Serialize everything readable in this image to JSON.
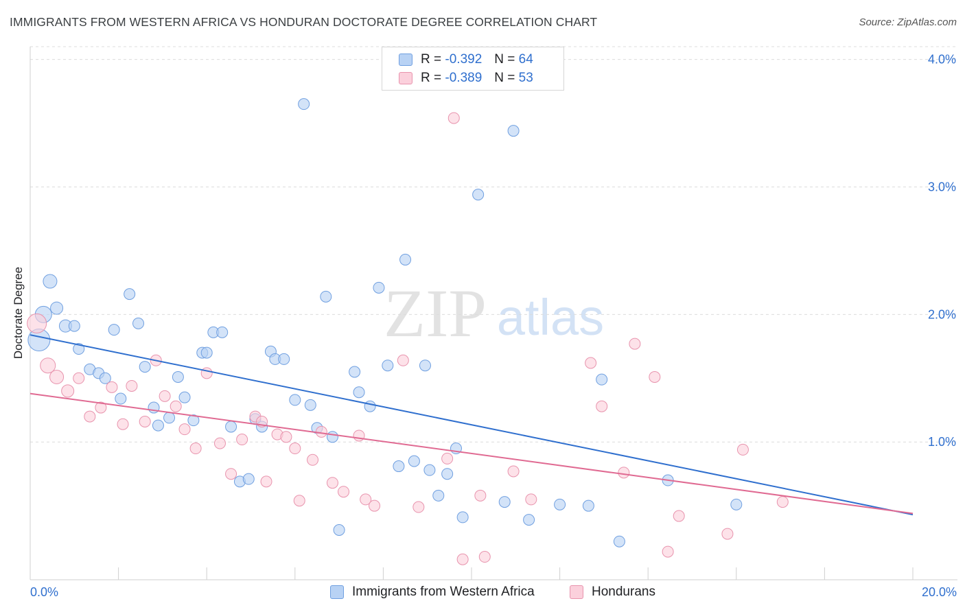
{
  "title": "IMMIGRANTS FROM WESTERN AFRICA VS HONDURAN DOCTORATE DEGREE CORRELATION CHART",
  "source": "Source: ZipAtlas.com",
  "watermark": {
    "zip": "ZIP",
    "atlas": "atlas"
  },
  "legend_stats": [
    {
      "r_label": "R =",
      "r_value": "-0.392",
      "n_label": "N =",
      "n_value": "64",
      "color": "#b8d2f4",
      "border": "#6f9fe0"
    },
    {
      "r_label": "R =",
      "r_value": "-0.389",
      "n_label": "N =",
      "n_value": "53",
      "color": "#fbd0dc",
      "border": "#e893ad"
    }
  ],
  "legend_series": [
    {
      "label": "Immigrants from Western Africa",
      "color": "#b8d2f4",
      "border": "#6f9fe0"
    },
    {
      "label": "Hondurans",
      "color": "#fbd0dc",
      "border": "#e893ad"
    }
  ],
  "x_axis": {
    "min_label": "0.0%",
    "max_label": "20.0%"
  },
  "chart_data": {
    "type": "scatter",
    "title": "IMMIGRANTS FROM WESTERN AFRICA VS HONDURAN DOCTORATE DEGREE CORRELATION CHART",
    "xlabel": "",
    "ylabel": "Doctorate Degree",
    "xlim": [
      0,
      20
    ],
    "ylim": [
      -0.08,
      4.1
    ],
    "x_unit": "%",
    "y_unit": "%",
    "y_ticks": [
      1.0,
      2.0,
      3.0,
      4.0
    ],
    "y_tick_labels": [
      "1.0%",
      "2.0%",
      "3.0%",
      "4.0%"
    ],
    "grid": "horizontal dashed",
    "legend": "top-center",
    "series": [
      {
        "name": "Immigrants from Western Africa",
        "color": "#6f9fe0",
        "fill": "#b8d2f4",
        "trend": {
          "x0": 0.0,
          "y0": 1.84,
          "x1": 20.0,
          "y1": 0.43,
          "color": "#2f6fce"
        },
        "points": [
          [
            0.2,
            1.8,
            16
          ],
          [
            0.3,
            2.0,
            12
          ],
          [
            0.45,
            2.26,
            10
          ],
          [
            0.6,
            2.05,
            9
          ],
          [
            0.8,
            1.91,
            9
          ],
          [
            1.0,
            1.91,
            8
          ],
          [
            1.1,
            1.73,
            8
          ],
          [
            1.35,
            1.57,
            8
          ],
          [
            1.55,
            1.54,
            8
          ],
          [
            1.7,
            1.5,
            8
          ],
          [
            1.9,
            1.88,
            8
          ],
          [
            2.05,
            1.34,
            8
          ],
          [
            2.25,
            2.16,
            8
          ],
          [
            2.45,
            1.93,
            8
          ],
          [
            2.6,
            1.59,
            8
          ],
          [
            2.8,
            1.27,
            8
          ],
          [
            2.9,
            1.13,
            8
          ],
          [
            3.15,
            1.19,
            8
          ],
          [
            3.35,
            1.51,
            8
          ],
          [
            3.5,
            1.35,
            8
          ],
          [
            3.7,
            1.17,
            8
          ],
          [
            3.9,
            1.7,
            8
          ],
          [
            4.0,
            1.7,
            8
          ],
          [
            4.15,
            1.86,
            8
          ],
          [
            4.35,
            1.86,
            8
          ],
          [
            4.55,
            1.12,
            8
          ],
          [
            4.75,
            0.69,
            8
          ],
          [
            4.95,
            0.71,
            8
          ],
          [
            5.1,
            1.18,
            8
          ],
          [
            5.25,
            1.12,
            8
          ],
          [
            5.45,
            1.71,
            8
          ],
          [
            5.55,
            1.65,
            8
          ],
          [
            5.75,
            1.65,
            8
          ],
          [
            6.0,
            1.33,
            8
          ],
          [
            6.2,
            3.65,
            8
          ],
          [
            6.35,
            1.29,
            8
          ],
          [
            6.5,
            1.11,
            8
          ],
          [
            6.7,
            2.14,
            8
          ],
          [
            6.85,
            1.04,
            8
          ],
          [
            7.0,
            0.31,
            8
          ],
          [
            7.35,
            1.55,
            8
          ],
          [
            7.45,
            1.39,
            8
          ],
          [
            7.7,
            1.28,
            8
          ],
          [
            7.9,
            2.21,
            8
          ],
          [
            8.1,
            1.6,
            8
          ],
          [
            8.35,
            0.81,
            8
          ],
          [
            8.5,
            2.43,
            8
          ],
          [
            8.7,
            0.85,
            8
          ],
          [
            8.95,
            1.6,
            8
          ],
          [
            9.05,
            0.78,
            8
          ],
          [
            9.25,
            0.58,
            8
          ],
          [
            9.45,
            0.75,
            8
          ],
          [
            9.65,
            0.95,
            8
          ],
          [
            9.8,
            0.41,
            8
          ],
          [
            10.15,
            2.94,
            8
          ],
          [
            10.75,
            0.53,
            8
          ],
          [
            10.95,
            3.44,
            8
          ],
          [
            11.3,
            0.39,
            8
          ],
          [
            12.0,
            0.51,
            8
          ],
          [
            12.65,
            0.5,
            8
          ],
          [
            12.95,
            1.49,
            8
          ],
          [
            13.35,
            0.22,
            8
          ],
          [
            14.45,
            0.7,
            8
          ],
          [
            16.0,
            0.51,
            8
          ]
        ]
      },
      {
        "name": "Hondurans",
        "color": "#e893ad",
        "fill": "#fbd0dc",
        "trend": {
          "x0": 0.0,
          "y0": 1.38,
          "x1": 20.0,
          "y1": 0.44,
          "color": "#e06a92"
        },
        "points": [
          [
            0.15,
            1.93,
            14
          ],
          [
            0.4,
            1.6,
            11
          ],
          [
            0.6,
            1.51,
            10
          ],
          [
            0.85,
            1.4,
            9
          ],
          [
            1.1,
            1.5,
            8
          ],
          [
            1.35,
            1.2,
            8
          ],
          [
            1.6,
            1.27,
            8
          ],
          [
            1.85,
            1.43,
            8
          ],
          [
            2.1,
            1.14,
            8
          ],
          [
            2.3,
            1.44,
            8
          ],
          [
            2.6,
            1.16,
            8
          ],
          [
            2.85,
            1.64,
            8
          ],
          [
            3.05,
            1.36,
            8
          ],
          [
            3.3,
            1.28,
            8
          ],
          [
            3.5,
            1.1,
            8
          ],
          [
            3.75,
            0.95,
            8
          ],
          [
            4.0,
            1.54,
            8
          ],
          [
            4.3,
            0.99,
            8
          ],
          [
            4.55,
            0.75,
            8
          ],
          [
            4.8,
            1.02,
            8
          ],
          [
            5.1,
            1.2,
            8
          ],
          [
            5.25,
            1.16,
            8
          ],
          [
            5.35,
            0.69,
            8
          ],
          [
            5.6,
            1.06,
            8
          ],
          [
            5.8,
            1.04,
            8
          ],
          [
            6.0,
            0.95,
            8
          ],
          [
            6.1,
            0.54,
            8
          ],
          [
            6.4,
            0.86,
            8
          ],
          [
            6.6,
            1.08,
            8
          ],
          [
            6.85,
            0.68,
            8
          ],
          [
            7.1,
            0.61,
            8
          ],
          [
            7.45,
            1.05,
            8
          ],
          [
            7.6,
            0.55,
            8
          ],
          [
            7.8,
            0.5,
            8
          ],
          [
            8.45,
            1.64,
            8
          ],
          [
            8.8,
            0.49,
            8
          ],
          [
            9.45,
            0.87,
            8
          ],
          [
            9.6,
            3.54,
            8
          ],
          [
            9.8,
            0.08,
            8
          ],
          [
            10.2,
            0.58,
            8
          ],
          [
            10.3,
            0.1,
            8
          ],
          [
            10.95,
            0.77,
            8
          ],
          [
            11.35,
            0.55,
            8
          ],
          [
            12.7,
            1.62,
            8
          ],
          [
            12.95,
            1.28,
            8
          ],
          [
            13.45,
            0.76,
            8
          ],
          [
            13.7,
            1.77,
            8
          ],
          [
            14.15,
            1.51,
            8
          ],
          [
            14.45,
            0.14,
            8
          ],
          [
            14.7,
            0.42,
            8
          ],
          [
            15.8,
            0.28,
            8
          ],
          [
            16.15,
            0.94,
            8
          ],
          [
            17.05,
            0.53,
            8
          ]
        ]
      }
    ]
  }
}
